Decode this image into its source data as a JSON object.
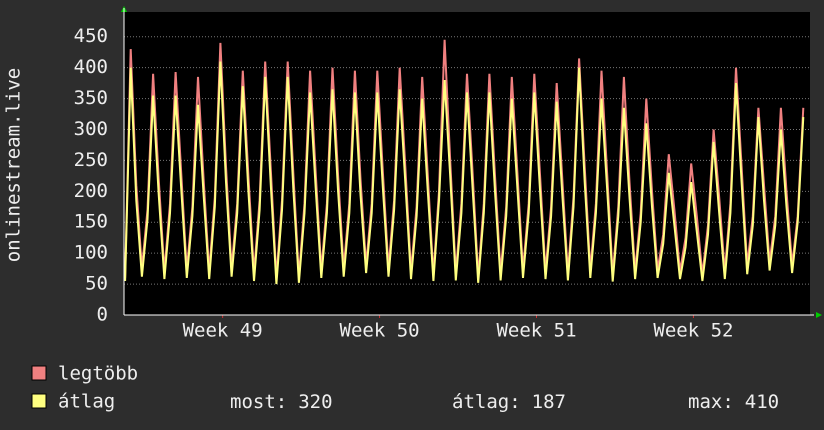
{
  "chart_data": {
    "type": "line",
    "y_label": "onlinestream.live",
    "x": [
      0.05,
      0.3,
      0.55,
      0.8,
      1.05,
      1.3,
      1.55,
      1.8,
      2.05,
      2.3,
      2.55,
      2.8,
      3.05,
      3.3,
      3.55,
      3.8,
      4.05,
      4.3,
      4.55,
      4.8,
      5.05,
      5.3,
      5.55,
      5.8,
      6.05,
      6.3,
      6.55,
      6.8,
      7.05,
      7.3,
      7.55,
      7.8,
      8.05,
      8.3,
      8.55,
      8.8,
      9.05,
      9.3,
      9.55,
      9.8,
      10.05,
      10.3,
      10.55,
      10.8,
      11.05,
      11.3,
      11.55,
      11.8,
      12.05,
      12.3,
      12.55,
      12.8,
      13.05,
      13.3,
      13.55,
      13.8,
      14.05,
      14.3,
      14.55,
      14.8,
      15.05,
      15.3,
      15.55,
      15.8,
      16.05,
      16.3,
      16.55,
      16.8,
      17.05,
      17.3,
      17.55,
      17.8,
      18.05,
      18.3,
      18.55,
      18.8,
      19.05,
      19.3,
      19.55,
      19.8,
      20.05,
      20.3,
      20.55,
      20.8,
      21.05,
      21.3,
      21.55,
      21.8,
      22.05,
      22.3,
      22.55,
      22.8,
      23.05,
      23.3,
      23.55,
      23.8,
      24.05,
      24.3,
      24.55,
      24.8,
      25.05,
      25.3,
      25.55,
      25.8,
      26.05,
      26.3,
      26.55,
      26.8,
      27.05,
      27.3,
      27.55,
      27.8,
      28.05,
      28.3,
      28.55,
      28.8,
      29.05,
      29.3,
      29.55,
      29.8,
      30.05,
      30.3
    ],
    "series": [
      {
        "name": "legtöbb",
        "color": "#f08080",
        "values": [
          60,
          430,
          210,
          75,
          170,
          390,
          220,
          70,
          180,
          393,
          230,
          72,
          175,
          385,
          220,
          70,
          190,
          440,
          240,
          75,
          180,
          395,
          225,
          68,
          185,
          410,
          235,
          60,
          185,
          410,
          230,
          62,
          180,
          395,
          230,
          72,
          180,
          400,
          225,
          75,
          180,
          395,
          220,
          80,
          180,
          395,
          230,
          75,
          185,
          400,
          240,
          70,
          175,
          385,
          225,
          65,
          200,
          445,
          250,
          68,
          180,
          390,
          230,
          62,
          180,
          390,
          225,
          68,
          175,
          385,
          230,
          72,
          180,
          390,
          230,
          70,
          175,
          375,
          220,
          68,
          190,
          415,
          240,
          72,
          180,
          395,
          230,
          65,
          175,
          385,
          215,
          70,
          165,
          350,
          200,
          72,
          130,
          260,
          170,
          70,
          125,
          245,
          160,
          65,
          145,
          300,
          190,
          70,
          180,
          400,
          240,
          80,
          160,
          335,
          210,
          85,
          160,
          335,
          200,
          80,
          160,
          335
        ]
      },
      {
        "name": "átlag",
        "color": "#ffff80",
        "values": [
          55,
          400,
          185,
          62,
          155,
          355,
          195,
          58,
          165,
          355,
          205,
          60,
          160,
          340,
          195,
          58,
          175,
          410,
          215,
          62,
          165,
          370,
          200,
          55,
          170,
          385,
          210,
          50,
          170,
          385,
          205,
          52,
          165,
          360,
          205,
          60,
          165,
          365,
          200,
          62,
          165,
          360,
          195,
          68,
          165,
          360,
          205,
          62,
          170,
          365,
          215,
          58,
          160,
          350,
          200,
          55,
          185,
          380,
          225,
          56,
          165,
          360,
          205,
          52,
          165,
          360,
          200,
          56,
          160,
          350,
          205,
          60,
          165,
          360,
          205,
          58,
          160,
          345,
          195,
          56,
          175,
          400,
          215,
          60,
          165,
          350,
          205,
          54,
          160,
          335,
          190,
          58,
          150,
          310,
          175,
          60,
          115,
          230,
          145,
          58,
          110,
          215,
          135,
          55,
          130,
          280,
          165,
          58,
          165,
          375,
          215,
          66,
          145,
          320,
          185,
          72,
          145,
          300,
          175,
          68,
          150,
          320
        ]
      }
    ],
    "stats": [
      {
        "label": "most:",
        "value": 320
      },
      {
        "label": "átlag:",
        "value": 187
      },
      {
        "label": "max:",
        "value": 410
      }
    ],
    "xlim": [
      0,
      30.6
    ],
    "xticks": [
      {
        "value": 4.4,
        "label": "Week 49"
      },
      {
        "value": 11.4,
        "label": "Week 50"
      },
      {
        "value": 18.4,
        "label": "Week 51"
      },
      {
        "value": 25.4,
        "label": "Week 52"
      }
    ],
    "ylim": [
      0,
      490
    ],
    "yticks": [
      0,
      50,
      100,
      150,
      200,
      250,
      300,
      350,
      400,
      450
    ],
    "grid": true
  }
}
